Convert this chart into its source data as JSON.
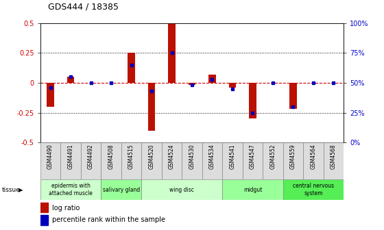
{
  "title": "GDS444 / 18385",
  "samples": [
    "GSM4490",
    "GSM4491",
    "GSM4492",
    "GSM4508",
    "GSM4515",
    "GSM4520",
    "GSM4524",
    "GSM4530",
    "GSM4534",
    "GSM4541",
    "GSM4547",
    "GSM4552",
    "GSM4559",
    "GSM4564",
    "GSM4568"
  ],
  "log_ratio": [
    -0.2,
    0.05,
    0.0,
    0.0,
    0.25,
    -0.4,
    0.5,
    -0.02,
    0.07,
    -0.04,
    -0.3,
    0.0,
    -0.22,
    0.0,
    0.0
  ],
  "percentile": [
    46,
    55,
    50,
    50,
    65,
    43,
    75,
    48,
    53,
    45,
    25,
    50,
    30,
    50,
    50
  ],
  "tissue_groups": [
    {
      "label": "epidermis with\nattached muscle",
      "start": 0,
      "end": 3,
      "color": "#ccffcc"
    },
    {
      "label": "salivary gland",
      "start": 3,
      "end": 5,
      "color": "#99ff99"
    },
    {
      "label": "wing disc",
      "start": 5,
      "end": 9,
      "color": "#ccffcc"
    },
    {
      "label": "midgut",
      "start": 9,
      "end": 12,
      "color": "#99ff99"
    },
    {
      "label": "central nervous\nsystem",
      "start": 12,
      "end": 15,
      "color": "#55ee55"
    }
  ],
  "bar_color": "#bb1100",
  "dot_color": "#0000bb",
  "hline_color": "#cc0000",
  "ylim": [
    -0.5,
    0.5
  ],
  "y2lim": [
    0,
    100
  ],
  "yticks_left": [
    -0.5,
    -0.25,
    0.0,
    0.25,
    0.5
  ],
  "ytick_labels_left": [
    "-0.5",
    "-0.25",
    "0",
    "0.25",
    "0.5"
  ],
  "yticks_right": [
    0,
    25,
    50,
    75,
    100
  ],
  "ytick_labels_right": [
    "0%",
    "25%",
    "50%",
    "75%",
    "100%"
  ],
  "bar_width": 0.35,
  "dot_size": 3,
  "label_color_left": "#cc0000",
  "label_color_right": "#0000cc"
}
